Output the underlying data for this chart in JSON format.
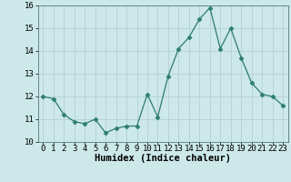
{
  "x": [
    0,
    1,
    2,
    3,
    4,
    5,
    6,
    7,
    8,
    9,
    10,
    11,
    12,
    13,
    14,
    15,
    16,
    17,
    18,
    19,
    20,
    21,
    22,
    23
  ],
  "y": [
    12.0,
    11.9,
    11.2,
    10.9,
    10.8,
    11.0,
    10.4,
    10.6,
    10.7,
    10.7,
    12.1,
    11.1,
    12.9,
    14.1,
    14.6,
    15.4,
    15.9,
    14.1,
    15.0,
    13.7,
    12.6,
    12.1,
    12.0,
    11.6
  ],
  "line_color": "#2e7d6e",
  "marker": "D",
  "marker_size": 2.5,
  "bg_color": "#cce8e8",
  "grid_color": "#b0cccc",
  "xlabel": "Humidex (Indice chaleur)",
  "xlabel_weight": "bold",
  "ylim": [
    10,
    16
  ],
  "xlim": [
    -0.5,
    23.5
  ],
  "yticks": [
    10,
    11,
    12,
    13,
    14,
    15,
    16
  ],
  "xticks": [
    0,
    1,
    2,
    3,
    4,
    5,
    6,
    7,
    8,
    9,
    10,
    11,
    12,
    13,
    14,
    15,
    16,
    17,
    18,
    19,
    20,
    21,
    22,
    23
  ],
  "tick_fontsize": 6.5,
  "xlabel_fontsize": 7.5
}
